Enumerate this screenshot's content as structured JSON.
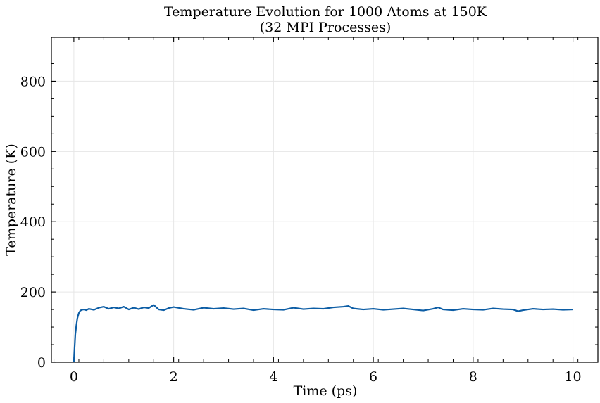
{
  "chart_data": {
    "type": "line",
    "title": "Temperature Evolution for 1000 Atoms at 150K",
    "subtitle": "(32 MPI Processes)",
    "xlabel": "Time (ps)",
    "ylabel": "Temperature (K)",
    "xlim": [
      -0.45,
      10.5
    ],
    "ylim": [
      0,
      925
    ],
    "x_ticks": [
      0,
      2,
      4,
      6,
      8,
      10
    ],
    "y_ticks": [
      0,
      200,
      400,
      600,
      800
    ],
    "x_tick_labels": [
      "0",
      "2",
      "4",
      "6",
      "8",
      "10"
    ],
    "y_tick_labels": [
      "0",
      "200",
      "400",
      "600",
      "800"
    ],
    "grid": true,
    "line_color": "#0c5da5",
    "series": [
      {
        "x": [
          0,
          0.01,
          0.02,
          0.03,
          0.05,
          0.07,
          0.1,
          0.13,
          0.16,
          0.2,
          0.25,
          0.3,
          0.4,
          0.5,
          0.6,
          0.7,
          0.8,
          0.9,
          1.0,
          1.1,
          1.2,
          1.3,
          1.4,
          1.5,
          1.6,
          1.7,
          1.8,
          1.9,
          2.0,
          2.2,
          2.4,
          2.6,
          2.8,
          3.0,
          3.2,
          3.4,
          3.6,
          3.8,
          4.0,
          4.2,
          4.4,
          4.6,
          4.8,
          5.0,
          5.2,
          5.4,
          5.5,
          5.6,
          5.8,
          6.0,
          6.2,
          6.4,
          6.6,
          6.8,
          7.0,
          7.2,
          7.3,
          7.4,
          7.6,
          7.8,
          8.0,
          8.2,
          8.4,
          8.6,
          8.8,
          8.9,
          9.0,
          9.2,
          9.4,
          9.6,
          9.8,
          10.0
        ],
        "y": [
          0,
          30,
          55,
          80,
          105,
          125,
          140,
          147,
          149,
          150,
          148,
          152,
          149,
          155,
          158,
          152,
          156,
          153,
          158,
          150,
          155,
          151,
          156,
          154,
          163,
          150,
          148,
          154,
          157,
          152,
          149,
          155,
          152,
          154,
          151,
          153,
          148,
          152,
          150,
          149,
          155,
          151,
          153,
          152,
          156,
          158,
          160,
          153,
          150,
          152,
          149,
          151,
          153,
          150,
          147,
          152,
          156,
          150,
          148,
          152,
          150,
          149,
          153,
          151,
          150,
          145,
          148,
          152,
          150,
          151,
          149,
          150
        ]
      }
    ]
  }
}
